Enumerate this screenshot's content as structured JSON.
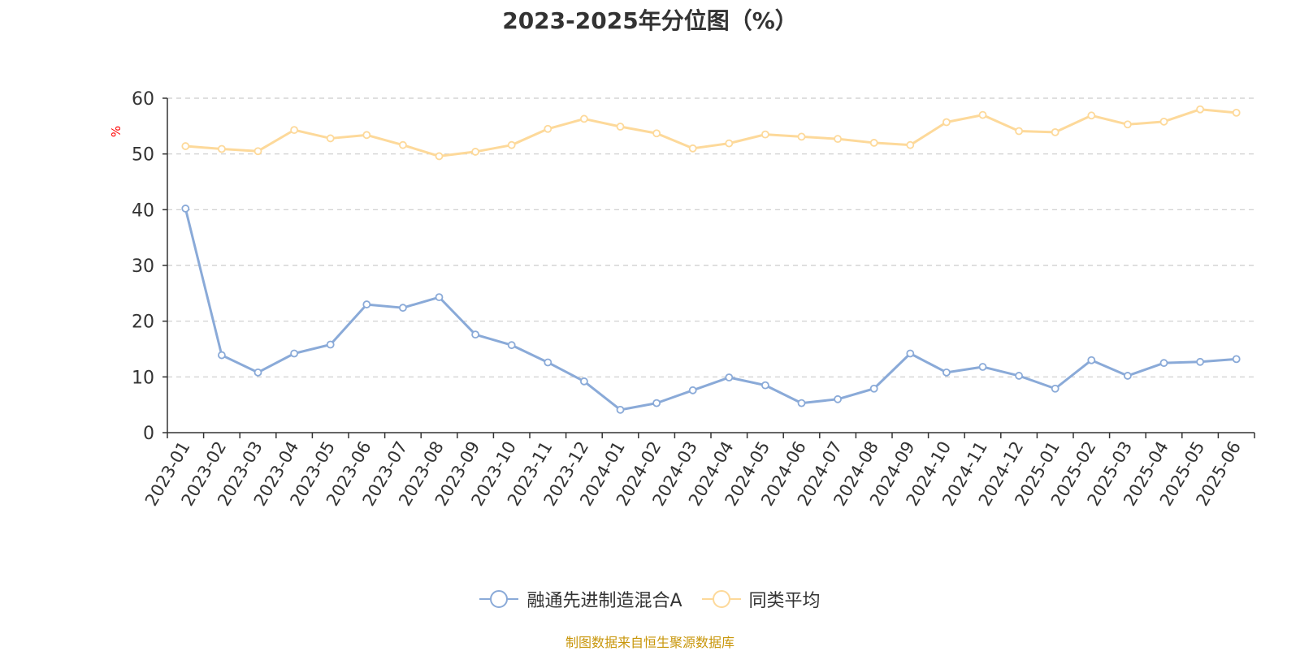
{
  "title": "2023-2025年分位图（%）",
  "source": "制图数据来自恒生聚源数据库",
  "chart_data": {
    "type": "line",
    "ylabel": "%",
    "ylim": [
      0,
      60
    ],
    "yticks": [
      0,
      10,
      20,
      30,
      40,
      50,
      60
    ],
    "grid": true,
    "legend_position": "bottom",
    "categories": [
      "2023-01",
      "2023-02",
      "2023-03",
      "2023-04",
      "2023-05",
      "2023-06",
      "2023-07",
      "2023-08",
      "2023-09",
      "2023-10",
      "2023-11",
      "2023-12",
      "2024-01",
      "2024-02",
      "2024-03",
      "2024-04",
      "2024-05",
      "2024-06",
      "2024-07",
      "2024-08",
      "2024-09",
      "2024-10",
      "2024-11",
      "2024-12",
      "2025-01",
      "2025-02",
      "2025-03",
      "2025-04",
      "2025-05",
      "2025-06"
    ],
    "series": [
      {
        "name": "融通先进制造混合A",
        "color": "#8aaad8",
        "values": [
          40.2,
          13.9,
          10.8,
          14.2,
          15.8,
          23.0,
          22.4,
          24.3,
          17.6,
          15.7,
          12.6,
          9.2,
          4.1,
          5.3,
          7.6,
          9.9,
          8.5,
          5.3,
          6.0,
          7.9,
          14.2,
          10.8,
          11.8,
          10.2,
          7.9,
          13.0,
          10.2,
          12.5,
          12.7,
          13.2
        ]
      },
      {
        "name": "同类平均",
        "color": "#fdd99a",
        "values": [
          51.4,
          50.9,
          50.5,
          54.3,
          52.8,
          53.4,
          51.6,
          49.6,
          50.4,
          51.6,
          54.5,
          56.3,
          54.9,
          53.7,
          51.0,
          51.9,
          53.5,
          53.1,
          52.7,
          52.0,
          51.6,
          55.7,
          57.0,
          54.1,
          53.9,
          56.9,
          55.3,
          55.8,
          58.0,
          57.4
        ]
      }
    ]
  }
}
